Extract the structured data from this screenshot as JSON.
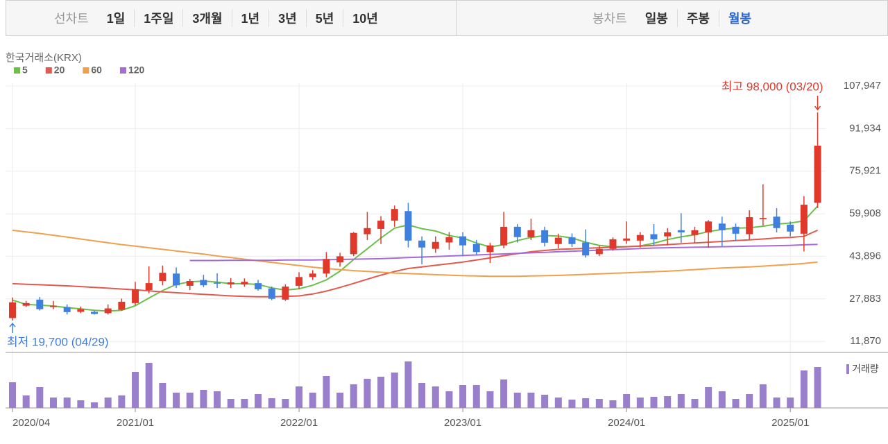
{
  "toolbar": {
    "line_label": "선차트",
    "periods": [
      "1일",
      "1주일",
      "3개월",
      "1년",
      "3년",
      "5년",
      "10년"
    ],
    "candle_label": "봉차트",
    "candle_periods": [
      "일봉",
      "주봉",
      "월봉"
    ],
    "selected": "월봉"
  },
  "chart_data": {
    "type": "candlestick",
    "source": "한국거래소(KRX)",
    "categories": [
      "2020/04",
      "2020/05",
      "2020/06",
      "2020/07",
      "2020/08",
      "2020/09",
      "2020/10",
      "2020/11",
      "2020/12",
      "2021/01",
      "2021/02",
      "2021/03",
      "2021/04",
      "2021/05",
      "2021/06",
      "2021/07",
      "2021/08",
      "2021/09",
      "2021/10",
      "2021/11",
      "2021/12",
      "2022/01",
      "2022/02",
      "2022/03",
      "2022/04",
      "2022/05",
      "2022/06",
      "2022/07",
      "2022/08",
      "2022/09",
      "2022/10",
      "2022/11",
      "2022/12",
      "2023/01",
      "2023/02",
      "2023/03",
      "2023/04",
      "2023/05",
      "2023/06",
      "2023/07",
      "2023/08",
      "2023/09",
      "2023/10",
      "2023/11",
      "2023/12",
      "2024/01",
      "2024/02",
      "2024/03",
      "2024/04",
      "2024/05",
      "2024/06",
      "2024/07",
      "2024/08",
      "2024/09",
      "2024/10",
      "2024/11",
      "2024/12",
      "2025/01",
      "2025/02",
      "2025/03"
    ],
    "open": [
      20650,
      25300,
      27600,
      24800,
      24800,
      23000,
      23000,
      22500,
      23800,
      26300,
      31200,
      34600,
      37400,
      32800,
      35000,
      34000,
      33300,
      33300,
      33800,
      31800,
      27600,
      32800,
      36100,
      37400,
      41600,
      44700,
      52200,
      54200,
      57300,
      60900,
      49800,
      46700,
      49100,
      51400,
      48500,
      45500,
      48000,
      55000,
      51100,
      53700,
      48500,
      51000,
      49100,
      44700,
      46700,
      49800,
      49800,
      52200,
      51400,
      53700,
      51900,
      52900,
      56200,
      55000,
      52200,
      57800,
      58800,
      55800,
      52400,
      64000
    ],
    "high": [
      28400,
      27100,
      28600,
      27100,
      25800,
      25000,
      23500,
      25800,
      28000,
      34300,
      40100,
      40400,
      39700,
      35400,
      36900,
      37500,
      35700,
      35600,
      35000,
      32500,
      33300,
      37900,
      38700,
      45500,
      45200,
      53000,
      60600,
      59000,
      63000,
      64000,
      51400,
      51400,
      53000,
      53000,
      50000,
      49000,
      60600,
      56000,
      58000,
      55000,
      52400,
      52500,
      54000,
      48000,
      51000,
      57000,
      53000,
      56000,
      54500,
      60100,
      55000,
      57500,
      58800,
      56200,
      61200,
      71000,
      62000,
      57000,
      66500,
      98000
    ],
    "low": [
      19700,
      24800,
      23500,
      24000,
      22000,
      22500,
      22000,
      22000,
      23500,
      25500,
      30000,
      33000,
      32000,
      31200,
      32300,
      32000,
      32000,
      32500,
      31000,
      27400,
      27100,
      31500,
      35000,
      36000,
      40000,
      44000,
      50000,
      48500,
      55000,
      47200,
      40900,
      45200,
      46400,
      43900,
      44600,
      41400,
      46900,
      49100,
      50000,
      47600,
      46900,
      47400,
      43400,
      44000,
      46000,
      48600,
      47200,
      48000,
      48000,
      49000,
      49000,
      47200,
      47700,
      49800,
      50300,
      55500,
      52900,
      51400,
      45700,
      62000
    ],
    "close": [
      26590,
      26300,
      24000,
      25300,
      22900,
      24000,
      22200,
      24300,
      26800,
      31500,
      33800,
      37700,
      33000,
      34600,
      33000,
      33600,
      34100,
      34300,
      31500,
      27900,
      32500,
      36100,
      37400,
      42900,
      43900,
      52700,
      54500,
      57300,
      61700,
      49800,
      47200,
      49300,
      51100,
      48000,
      45500,
      48000,
      55000,
      51100,
      53700,
      49000,
      50900,
      48500,
      44200,
      46700,
      50300,
      50600,
      51900,
      50300,
      52900,
      52900,
      53700,
      57000,
      53700,
      52400,
      58600,
      58300,
      54500,
      53200,
      63300,
      85500
    ],
    "up_color": "#e0392b",
    "down_color": "#3f7fde",
    "moving_averages": [
      {
        "name": "5",
        "color": "#6cbf4a",
        "values": [
          27400,
          25800,
          25500,
          25200,
          24600,
          24100,
          23600,
          23300,
          23600,
          25300,
          28200,
          31000,
          33300,
          34300,
          34600,
          34200,
          33600,
          33600,
          33300,
          32000,
          31200,
          31700,
          33000,
          35000,
          38300,
          42700,
          46700,
          50800,
          54500,
          55700,
          54300,
          53400,
          51700,
          50800,
          48900,
          47400,
          48300,
          49800,
          51000,
          51700,
          51500,
          50800,
          49200,
          48000,
          47500,
          47500,
          47800,
          48800,
          50200,
          51200,
          52000,
          53200,
          54000,
          54500,
          54600,
          55200,
          56000,
          56400,
          57200,
          62800
        ]
      },
      {
        "name": "20",
        "color": "#e05a4e",
        "values": [
          33600,
          33400,
          33200,
          33000,
          32800,
          32500,
          32200,
          31900,
          31600,
          31300,
          30900,
          30500,
          30200,
          29900,
          29600,
          29300,
          29000,
          28800,
          28700,
          28700,
          28800,
          29000,
          29700,
          30800,
          32200,
          33700,
          35300,
          36800,
          38200,
          39300,
          39900,
          40500,
          41100,
          41700,
          42500,
          43300,
          44100,
          44900,
          45600,
          46100,
          46500,
          46700,
          46900,
          47100,
          47300,
          47500,
          47700,
          48000,
          48300,
          48600,
          48900,
          49200,
          49500,
          49800,
          50100,
          50400,
          50800,
          51000,
          51400,
          53700
        ]
      },
      {
        "name": "60",
        "color": "#f0a04b",
        "values": [
          53700,
          53100,
          52500,
          51800,
          51100,
          50400,
          49700,
          49000,
          48300,
          47700,
          47100,
          46500,
          45900,
          45300,
          44700,
          44000,
          43400,
          42800,
          42200,
          41600,
          41000,
          40400,
          39800,
          39300,
          38900,
          38500,
          38200,
          37900,
          37600,
          37400,
          37200,
          37000,
          36800,
          36600,
          36500,
          36400,
          36400,
          36400,
          36500,
          36600,
          36700,
          36900,
          37100,
          37300,
          37500,
          37700,
          37900,
          38100,
          38300,
          38600,
          38900,
          39200,
          39500,
          39700,
          39900,
          40200,
          40500,
          40800,
          41200,
          41700
        ]
      },
      {
        "name": "120",
        "color": "#a66bd6",
        "values": [
          null,
          null,
          null,
          null,
          null,
          null,
          null,
          null,
          null,
          null,
          null,
          null,
          null,
          42300,
          42300,
          42300,
          42400,
          42400,
          42400,
          42400,
          42500,
          42500,
          42500,
          42600,
          42700,
          42800,
          42900,
          43000,
          43200,
          43400,
          43600,
          43800,
          44000,
          44200,
          44400,
          44600,
          44800,
          45000,
          45200,
          45400,
          45600,
          45800,
          46000,
          46200,
          46400,
          46600,
          46800,
          47000,
          47100,
          47200,
          47300,
          47400,
          47500,
          47600,
          47700,
          47800,
          47900,
          48000,
          48200,
          48400
        ]
      }
    ],
    "volume": {
      "name": "거래량",
      "color": "#9a7fcc",
      "ylim": [
        0,
        70
      ],
      "values": [
        37,
        18,
        30,
        15,
        15,
        11,
        8,
        15,
        18,
        52,
        65,
        36,
        22,
        22,
        26,
        24,
        13,
        13,
        20,
        14,
        13,
        31,
        22,
        46,
        22,
        34,
        42,
        45,
        51,
        67,
        36,
        31,
        24,
        33,
        33,
        24,
        41,
        22,
        22,
        19,
        15,
        12,
        14,
        13,
        11,
        20,
        15,
        16,
        17,
        20,
        13,
        30,
        24,
        13,
        20,
        34,
        15,
        15,
        54,
        59
      ]
    },
    "ylim": [
      7738,
      108980
    ],
    "yticks": [
      {
        "value": 11870,
        "label": "11,870"
      },
      {
        "value": 27883,
        "label": "27,883"
      },
      {
        "value": 43896,
        "label": "43,896"
      },
      {
        "value": 59908,
        "label": "59,908"
      },
      {
        "value": 75921,
        "label": "75,921"
      },
      {
        "value": 91934,
        "label": "91,934"
      },
      {
        "value": 107947,
        "label": "107,947"
      }
    ],
    "xticks": [
      {
        "value": 0,
        "label": "2020/04"
      },
      {
        "value": 9,
        "label": "2021/01"
      },
      {
        "value": 21,
        "label": "2022/01"
      },
      {
        "value": 33,
        "label": "2023/01"
      },
      {
        "value": 45,
        "label": "2024/01"
      },
      {
        "value": 57,
        "label": "2025/01"
      }
    ],
    "annotations": {
      "high": {
        "text": "최고 98,000 (03/20)",
        "color": "#e0392b"
      },
      "low": {
        "text": "최저 19,700 (04/29)",
        "color": "#3f7fde"
      }
    },
    "grid": true
  }
}
